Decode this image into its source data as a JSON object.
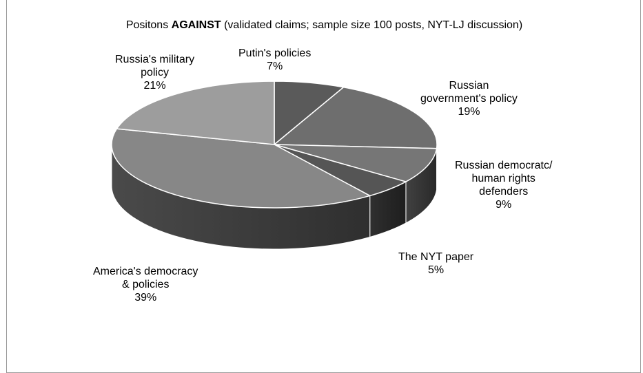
{
  "chart_data": {
    "type": "pie",
    "title_prefix": "Positons ",
    "title_bold": "AGAINST",
    "title_suffix": " (validated claims; sample size 100 posts, NYT-LJ  discussion)",
    "slices": [
      {
        "name_lines": [
          "Putin's policies"
        ],
        "percent_label": "7%",
        "value": 7,
        "color": "#5a5a5a"
      },
      {
        "name_lines": [
          "Russian",
          "government's policy"
        ],
        "percent_label": "19%",
        "value": 19,
        "color": "#6e6e6e"
      },
      {
        "name_lines": [
          "Russian democratc/",
          "human rights",
          "defenders"
        ],
        "percent_label": "9%",
        "value": 9,
        "color": "#767676"
      },
      {
        "name_lines": [
          "The NYT paper"
        ],
        "percent_label": "5%",
        "value": 5,
        "color": "#555555"
      },
      {
        "name_lines": [
          "America's democracy",
          "& policies"
        ],
        "percent_label": "39%",
        "value": 39,
        "color": "#878787"
      },
      {
        "name_lines": [
          "Russia's military",
          "policy"
        ],
        "percent_label": "21%",
        "value": 21,
        "color": "#9d9d9d"
      }
    ],
    "start_angle_deg": 0,
    "direction": "clockwise",
    "style": "3d-pie",
    "legend": "none"
  }
}
